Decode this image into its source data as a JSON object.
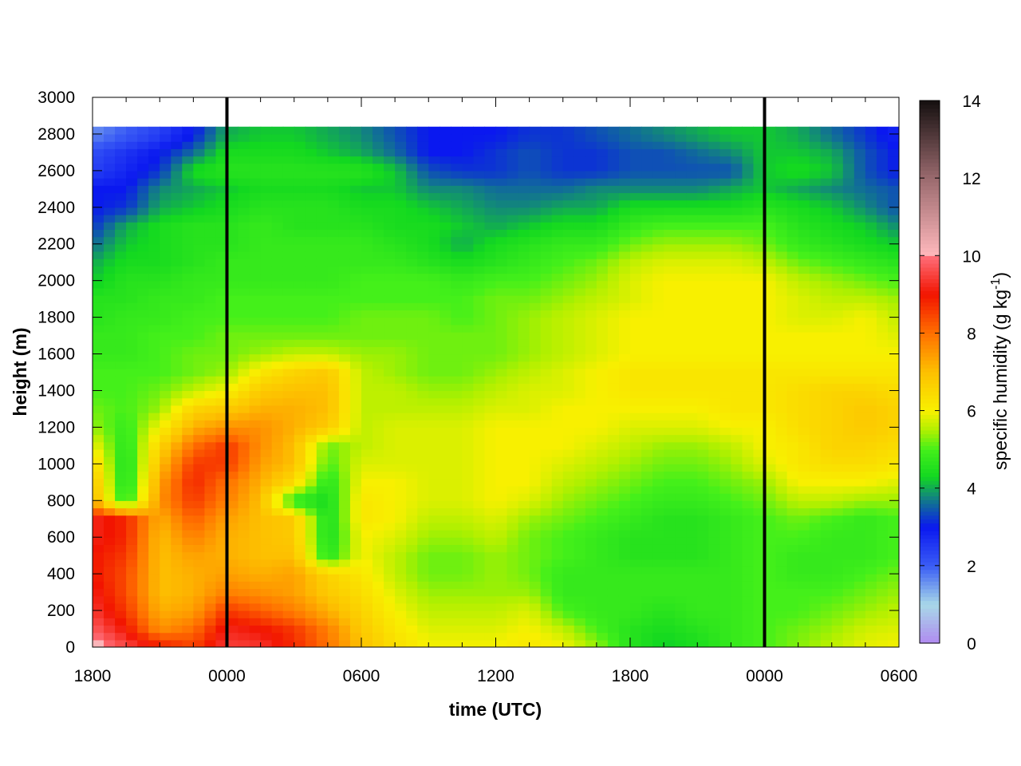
{
  "chart_data": {
    "type": "heatmap",
    "title": "",
    "xlabel": "time (UTC)",
    "ylabel": "height (m)",
    "colorbar_label": "specific humidity (g kg",
    "colorbar_label_sup": "-1",
    "colorbar_label_end": ")",
    "x_tick_labels": [
      "1800",
      "0000",
      "0600",
      "1200",
      "1800",
      "0000",
      "0600"
    ],
    "x_range_hours": [
      0,
      36
    ],
    "x_tick_hours": [
      0,
      6,
      12,
      18,
      24,
      30,
      36
    ],
    "y_ticks": [
      0,
      200,
      400,
      600,
      800,
      1000,
      1200,
      1400,
      1600,
      1800,
      2000,
      2200,
      2400,
      2600,
      2800,
      3000
    ],
    "ylim": [
      0,
      3000
    ],
    "colorbar_ticks": [
      0,
      2,
      4,
      6,
      8,
      10,
      12,
      14
    ],
    "zlim": [
      0,
      14
    ],
    "vertical_markers_hours": [
      6,
      30
    ],
    "data_top_m": 2840,
    "grid": false,
    "heights_m": [
      0,
      100,
      200,
      300,
      400,
      500,
      600,
      700,
      800,
      900,
      1000,
      1100,
      1200,
      1300,
      1400,
      1500,
      1600,
      1700,
      1800,
      1900,
      2000,
      2100,
      2200,
      2300,
      2400,
      2500,
      2600,
      2700,
      2800
    ],
    "times_hours": [
      0,
      1.5,
      3,
      4.5,
      6,
      7.5,
      9,
      10.5,
      12,
      13.5,
      15,
      16.5,
      18,
      19.5,
      21,
      22.5,
      24,
      25.5,
      27,
      28.5,
      30,
      31.5,
      33,
      34.5,
      36
    ],
    "q_g_per_kg": [
      [
        10.3,
        9.6,
        9.0,
        8.5,
        9.5,
        9.4,
        8.8,
        8.0,
        7.0,
        6.4,
        6.0,
        6.0,
        6.0,
        6.2,
        6.0,
        5.4,
        4.6,
        4.2,
        4.4,
        4.8,
        5.0,
        5.3,
        5.6,
        5.9,
        6.0
      ],
      [
        9.8,
        9.0,
        7.6,
        8.0,
        9.2,
        9.0,
        8.6,
        7.8,
        6.8,
        6.2,
        5.8,
        5.8,
        5.8,
        6.0,
        5.6,
        5.0,
        4.6,
        4.4,
        4.6,
        4.8,
        5.0,
        5.2,
        5.4,
        5.7,
        5.8
      ],
      [
        9.4,
        8.6,
        7.2,
        7.4,
        8.6,
        8.2,
        7.8,
        7.2,
        6.6,
        6.0,
        5.6,
        5.6,
        5.6,
        5.8,
        5.0,
        4.8,
        4.8,
        4.6,
        4.8,
        4.8,
        5.0,
        5.0,
        5.2,
        5.4,
        5.6
      ],
      [
        9.2,
        8.4,
        7.0,
        7.2,
        7.8,
        7.6,
        7.4,
        6.8,
        6.4,
        5.8,
        5.4,
        5.4,
        5.4,
        5.4,
        4.8,
        4.8,
        4.8,
        4.8,
        4.8,
        4.8,
        5.0,
        5.0,
        5.0,
        5.2,
        5.4
      ],
      [
        9.0,
        8.4,
        7.0,
        7.2,
        7.4,
        7.2,
        7.4,
        6.6,
        6.2,
        5.6,
        5.2,
        5.2,
        5.4,
        5.2,
        4.8,
        4.8,
        4.8,
        4.8,
        4.8,
        4.8,
        5.0,
        4.8,
        4.8,
        5.0,
        5.2
      ],
      [
        9.0,
        8.6,
        7.0,
        7.4,
        7.2,
        7.0,
        7.0,
        4.6,
        6.0,
        5.6,
        5.2,
        5.2,
        5.4,
        5.2,
        5.0,
        4.8,
        4.6,
        4.6,
        4.6,
        4.8,
        5.0,
        4.8,
        4.8,
        4.8,
        5.0
      ],
      [
        9.2,
        8.8,
        7.0,
        7.8,
        7.2,
        7.0,
        6.8,
        4.4,
        6.0,
        5.8,
        5.4,
        5.4,
        5.6,
        5.2,
        5.0,
        4.8,
        4.6,
        4.6,
        4.6,
        4.8,
        5.0,
        5.0,
        4.8,
        4.8,
        5.0
      ],
      [
        9.2,
        8.8,
        7.2,
        8.2,
        7.4,
        7.0,
        6.8,
        4.4,
        6.2,
        6.0,
        5.6,
        5.6,
        5.8,
        5.4,
        5.2,
        5.0,
        4.8,
        4.6,
        4.6,
        4.8,
        5.0,
        5.2,
        5.0,
        4.8,
        5.0
      ],
      [
        7.2,
        4.6,
        7.6,
        8.6,
        7.8,
        7.0,
        4.6,
        4.4,
        6.2,
        6.0,
        5.8,
        5.8,
        6.0,
        5.8,
        5.4,
        5.2,
        5.0,
        4.8,
        4.8,
        5.0,
        5.2,
        5.6,
        5.6,
        5.4,
        5.4
      ],
      [
        7.0,
        4.4,
        7.4,
        8.8,
        8.0,
        7.2,
        6.4,
        4.6,
        6.0,
        6.0,
        5.8,
        5.8,
        6.0,
        6.0,
        5.6,
        5.4,
        5.2,
        5.0,
        5.0,
        5.2,
        5.4,
        6.0,
        6.0,
        6.0,
        5.8
      ],
      [
        6.6,
        4.4,
        7.0,
        8.6,
        8.6,
        7.4,
        7.0,
        5.0,
        5.8,
        5.8,
        5.8,
        5.8,
        6.0,
        6.0,
        5.8,
        5.6,
        5.4,
        5.2,
        5.2,
        5.4,
        5.8,
        6.2,
        6.4,
        6.4,
        6.2
      ],
      [
        6.0,
        4.6,
        6.6,
        8.0,
        8.6,
        7.6,
        7.0,
        5.2,
        5.6,
        5.8,
        5.8,
        5.8,
        6.0,
        6.0,
        6.0,
        5.8,
        5.6,
        5.4,
        5.4,
        5.6,
        6.0,
        6.2,
        6.6,
        6.6,
        6.4
      ],
      [
        5.4,
        4.8,
        6.0,
        7.2,
        7.6,
        7.6,
        7.2,
        6.8,
        5.6,
        5.8,
        5.8,
        5.8,
        6.0,
        6.0,
        6.0,
        6.0,
        5.8,
        5.8,
        5.8,
        6.0,
        6.0,
        6.4,
        6.6,
        6.8,
        6.6
      ],
      [
        5.2,
        5.0,
        5.4,
        6.6,
        6.8,
        7.2,
        7.2,
        7.0,
        5.6,
        5.6,
        5.6,
        5.6,
        5.8,
        5.8,
        6.0,
        6.0,
        6.0,
        6.0,
        6.0,
        6.2,
        6.2,
        6.4,
        6.6,
        6.8,
        6.6
      ],
      [
        5.0,
        5.0,
        5.2,
        5.6,
        6.0,
        6.8,
        7.0,
        7.0,
        5.6,
        5.6,
        5.4,
        5.4,
        5.6,
        5.8,
        5.8,
        6.0,
        6.2,
        6.2,
        6.2,
        6.2,
        6.2,
        6.4,
        6.6,
        6.6,
        6.4
      ],
      [
        5.0,
        5.0,
        5.0,
        5.2,
        5.4,
        6.2,
        6.6,
        6.8,
        5.6,
        5.4,
        5.2,
        5.2,
        5.4,
        5.6,
        5.8,
        6.0,
        6.2,
        6.2,
        6.2,
        6.2,
        6.2,
        6.2,
        6.2,
        6.2,
        6.2
      ],
      [
        4.8,
        4.8,
        5.0,
        5.2,
        5.2,
        5.4,
        5.6,
        5.6,
        5.4,
        5.4,
        5.2,
        5.2,
        5.2,
        5.4,
        5.6,
        5.8,
        6.0,
        6.0,
        6.0,
        6.0,
        6.0,
        6.0,
        6.0,
        6.0,
        6.0
      ],
      [
        4.8,
        4.8,
        5.0,
        5.0,
        5.2,
        5.2,
        5.2,
        5.2,
        5.2,
        5.2,
        5.2,
        5.2,
        5.2,
        5.4,
        5.6,
        5.8,
        6.0,
        6.0,
        6.0,
        6.0,
        6.0,
        6.0,
        6.0,
        6.0,
        5.8
      ],
      [
        4.6,
        4.8,
        4.8,
        5.0,
        5.0,
        5.0,
        5.0,
        5.0,
        5.2,
        5.2,
        5.2,
        5.0,
        5.2,
        5.4,
        5.6,
        5.8,
        6.0,
        6.0,
        6.0,
        6.0,
        6.0,
        5.8,
        5.8,
        6.0,
        5.6
      ],
      [
        4.6,
        4.6,
        4.8,
        4.8,
        5.0,
        5.0,
        5.0,
        5.0,
        5.0,
        5.0,
        5.0,
        5.0,
        5.2,
        5.2,
        5.4,
        5.6,
        5.8,
        6.0,
        6.0,
        6.0,
        6.0,
        5.8,
        5.6,
        5.6,
        5.4
      ],
      [
        4.2,
        4.6,
        4.6,
        4.8,
        4.8,
        4.8,
        4.8,
        4.8,
        5.0,
        5.0,
        5.0,
        4.8,
        5.0,
        5.0,
        5.2,
        5.4,
        5.8,
        6.0,
        6.0,
        6.0,
        6.0,
        5.6,
        5.4,
        5.2,
        5.0
      ],
      [
        4.0,
        4.4,
        4.4,
        4.6,
        4.8,
        4.8,
        4.8,
        4.8,
        4.8,
        4.8,
        4.6,
        4.4,
        4.6,
        4.8,
        5.0,
        5.2,
        5.6,
        5.8,
        5.8,
        5.8,
        5.6,
        5.2,
        5.0,
        4.8,
        4.6
      ],
      [
        3.6,
        4.2,
        4.4,
        4.6,
        4.6,
        4.8,
        4.8,
        4.8,
        4.8,
        4.6,
        4.4,
        4.0,
        4.4,
        4.6,
        4.8,
        4.8,
        5.2,
        5.4,
        5.4,
        5.4,
        5.2,
        4.8,
        4.6,
        4.4,
        4.2
      ],
      [
        3.2,
        4.0,
        4.4,
        4.6,
        4.6,
        4.8,
        4.6,
        4.6,
        4.6,
        4.4,
        4.4,
        4.2,
        4.0,
        4.2,
        4.4,
        4.4,
        4.8,
        5.0,
        5.0,
        5.0,
        5.0,
        4.6,
        4.4,
        4.2,
        3.8
      ],
      [
        3.0,
        3.2,
        4.0,
        4.2,
        4.4,
        4.6,
        4.6,
        4.6,
        4.4,
        4.4,
        4.2,
        4.0,
        3.8,
        3.8,
        4.0,
        4.0,
        4.4,
        4.4,
        4.4,
        4.4,
        4.6,
        4.4,
        4.2,
        3.8,
        3.4
      ],
      [
        3.0,
        3.0,
        3.8,
        4.0,
        4.2,
        4.4,
        4.4,
        4.4,
        4.2,
        4.2,
        3.8,
        3.8,
        3.6,
        3.6,
        3.6,
        3.8,
        3.8,
        3.8,
        3.8,
        4.0,
        4.2,
        4.0,
        3.8,
        3.6,
        3.4
      ],
      [
        2.4,
        2.8,
        3.2,
        4.4,
        4.6,
        4.6,
        4.6,
        4.6,
        4.6,
        4.2,
        3.4,
        3.2,
        3.2,
        3.4,
        3.2,
        3.2,
        3.4,
        3.4,
        3.4,
        3.4,
        4.2,
        4.4,
        4.2,
        3.4,
        3.0
      ],
      [
        2.2,
        2.6,
        3.0,
        3.6,
        4.4,
        4.4,
        4.4,
        4.2,
        4.0,
        3.6,
        3.0,
        3.0,
        3.2,
        3.4,
        3.2,
        3.2,
        3.4,
        3.4,
        3.6,
        3.8,
        4.2,
        4.2,
        4.0,
        3.4,
        3.0
      ],
      [
        1.6,
        2.0,
        2.4,
        3.0,
        4.0,
        4.2,
        4.2,
        4.0,
        3.8,
        3.4,
        3.0,
        3.0,
        3.0,
        3.2,
        3.2,
        3.4,
        3.6,
        3.8,
        4.0,
        4.2,
        4.2,
        4.0,
        3.6,
        3.2,
        2.8
      ]
    ]
  },
  "colormap": [
    {
      "v": 0,
      "c": "#b08af0"
    },
    {
      "v": 1,
      "c": "#a8d8e8"
    },
    {
      "v": 2,
      "c": "#3a5cf5"
    },
    {
      "v": 3,
      "c": "#0a18f0"
    },
    {
      "v": 3.7,
      "c": "#127a8a"
    },
    {
      "v": 4.3,
      "c": "#12d820"
    },
    {
      "v": 5,
      "c": "#44f01a"
    },
    {
      "v": 5.5,
      "c": "#b0f000"
    },
    {
      "v": 6,
      "c": "#f8f000"
    },
    {
      "v": 7,
      "c": "#fdc000"
    },
    {
      "v": 8,
      "c": "#ff7000"
    },
    {
      "v": 9,
      "c": "#f21400"
    },
    {
      "v": 10,
      "c": "#ff6f7a"
    },
    {
      "v": 10.01,
      "c": "#ffb8bc"
    },
    {
      "v": 12,
      "c": "#9a6a6e"
    },
    {
      "v": 14,
      "c": "#151010"
    }
  ]
}
